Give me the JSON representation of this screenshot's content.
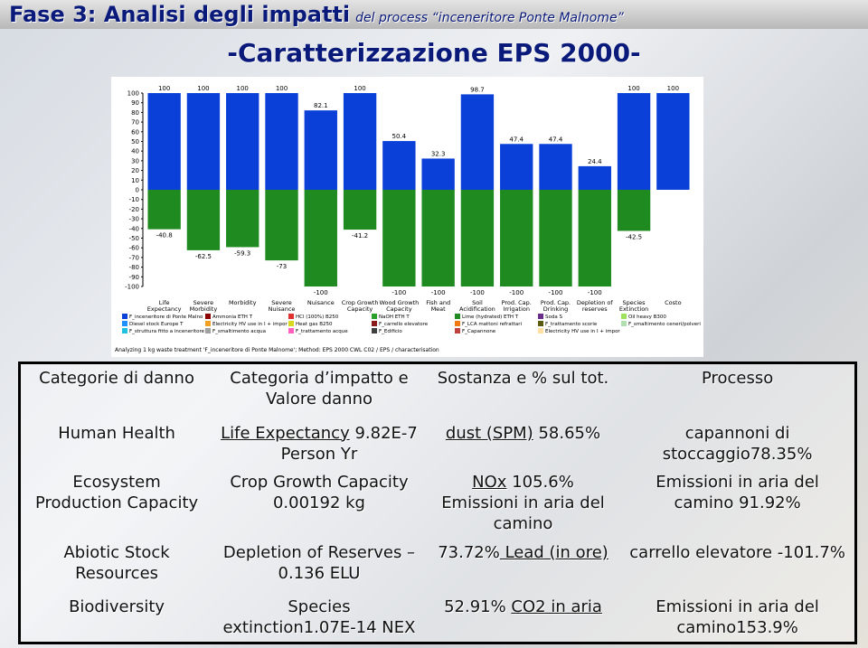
{
  "header": {
    "title": "Fase 3: Analisi degli impatti",
    "title_note": "del process “inceneritore Ponte Malnome”",
    "subtitle": "-Caratterizzazione EPS 2000-"
  },
  "chart_data": {
    "type": "bar",
    "categories": [
      "Life Expectancy",
      "Severe Morbidity",
      "Morbidity",
      "Severe Nuisance",
      "Nuisance",
      "Crop Growth Capacity",
      "Wood Growth Capacity",
      "Fish and Meat",
      "Soil Acidification",
      "Prod. Cap. Irrigation",
      "Prod. Cap. Drinking",
      "Depletion of reserves",
      "Species Extinction",
      "Costo"
    ],
    "series": [
      {
        "color": "#0a3fd8",
        "values": [
          100,
          100,
          100,
          100,
          82.1,
          100,
          50.4,
          32.3,
          98.7,
          47.4,
          47.4,
          24.4,
          100,
          100
        ]
      },
      {
        "color": "#1f8a1f",
        "values": [
          -40.8,
          -62.5,
          -59.3,
          -73,
          -100,
          -41.2,
          -100,
          -100,
          -100,
          -100,
          -100,
          -100,
          -42.5,
          null
        ]
      }
    ],
    "ylim": [
      -100,
      100
    ],
    "yticks": [
      -100,
      -90,
      -80,
      -70,
      -60,
      -50,
      -40,
      -30,
      -20,
      -10,
      0,
      10,
      20,
      30,
      40,
      50,
      60,
      70,
      80,
      90,
      100
    ],
    "legend": [
      {
        "name": "F_inceneritore di Ponte Malno",
        "color": "#0a3fd8"
      },
      {
        "name": "Ammonia ETH T",
        "color": "#8b0000"
      },
      {
        "name": "HCl (100%) B250",
        "color": "#e03030"
      },
      {
        "name": "NaOH ETH T",
        "color": "#2aa02a"
      },
      {
        "name": "Lime (hydrated) ETH T",
        "color": "#1f8a1f"
      },
      {
        "name": "Soda S",
        "color": "#6b2c8c"
      },
      {
        "name": "Oil heavy B300",
        "color": "#9be35a"
      },
      {
        "name": "Diesel stock Europe T",
        "color": "#1e90ff"
      },
      {
        "name": "Electricity HV use in I + impor",
        "color": "#f4a020"
      },
      {
        "name": "Heat gas B250",
        "color": "#d8d820"
      },
      {
        "name": "F_carrello elevatore",
        "color": "#8a1a1a"
      },
      {
        "name": "F_LCA mattoni refrattari",
        "color": "#f07a10"
      },
      {
        "name": "F_trattamento scorie",
        "color": "#5c5c10"
      },
      {
        "name": "F_smaltimento ceneri/polveri",
        "color": "#b0e0b0"
      },
      {
        "name": "F_struttura fitto a inceneritore",
        "color": "#20c0e0"
      },
      {
        "name": "F_smaltimento acqua",
        "color": "#a0a0a0"
      },
      {
        "name": "F_trattamento acque",
        "color": "#ff60c0"
      },
      {
        "name": "F_Edificio",
        "color": "#404040"
      },
      {
        "name": "F_Capannone",
        "color": "#c04040"
      },
      {
        "name": "Electricity HV use in I + impor",
        "color": "#ffe0a0"
      }
    ],
    "note": "Analyzing 1 kg waste treatment 'F_inceneritore di Ponte Malnome'; Method: EPS 2000 CWL C02 / EPS / characterisation"
  },
  "table": {
    "header": [
      "Categorie di danno",
      "Categoria d’impatto e Valore danno",
      "Sostanza e % sul tot.",
      "Processo"
    ],
    "rows": [
      [
        [
          "Human Health"
        ],
        [
          {
            "underline": "Life Expectancy"
          },
          " 9.82E-7 Person Yr"
        ],
        [
          {
            "underline": "dust (SPM)"
          },
          " 58.65%"
        ],
        [
          "capannoni di stoccaggio78.35%"
        ]
      ],
      [
        [
          "Ecosystem Production Capacity"
        ],
        [
          "Crop Growth Capacity 0.00192 kg"
        ],
        [
          {
            "underline": "NOx"
          },
          " 105.6% Emissioni in aria del camino"
        ],
        [
          "Emissioni in aria del camino 91.92%"
        ]
      ],
      [
        [
          "Abiotic Stock Resources"
        ],
        [
          "Depletion of Reserves –0.136 ELU"
        ],
        [
          "73.72%",
          {
            "underline": " Lead (in ore)"
          }
        ],
        [
          "carrello elevatore -101.7%"
        ]
      ],
      [
        [
          "Biodiversity"
        ],
        [
          "Species extinction1.07E-14 NEX"
        ],
        [
          "52.91% ",
          {
            "underline": "CO2 in aria"
          }
        ],
        [
          "Emissioni in aria del camino153.9%"
        ]
      ]
    ]
  }
}
